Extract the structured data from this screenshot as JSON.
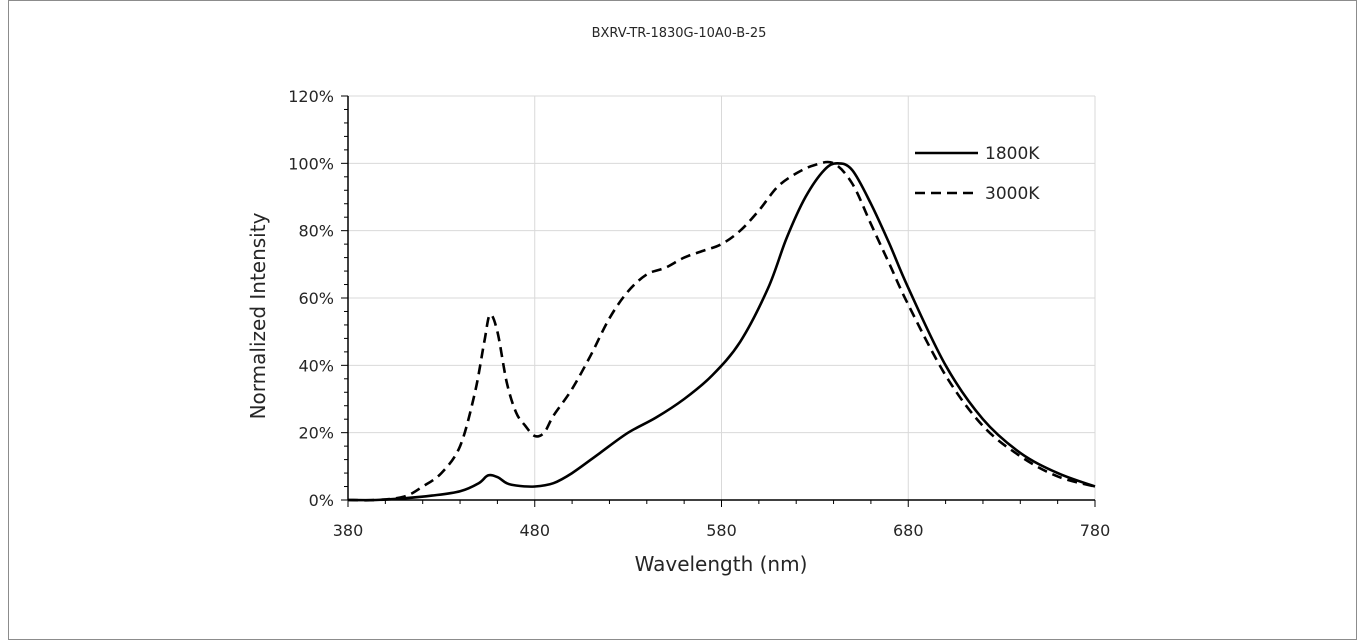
{
  "chart_data": {
    "type": "line",
    "title": "BXRV-TR-1830G-10A0-B-25",
    "xlabel": "Wavelength (nm)",
    "ylabel": "Normalized Intensity",
    "xlim": [
      380,
      780
    ],
    "ylim": [
      0,
      1.2
    ],
    "x_ticks": [
      380,
      480,
      580,
      680,
      780
    ],
    "y_ticks": [
      0,
      0.2,
      0.4,
      0.6,
      0.8,
      1.0,
      1.2
    ],
    "x_tick_labels": [
      "380",
      "480",
      "580",
      "680",
      "780"
    ],
    "y_tick_labels": [
      "0%",
      "20%",
      "40%",
      "60%",
      "80%",
      "100%",
      "120%"
    ],
    "grid": true,
    "legend_position": "top-right",
    "series": [
      {
        "name": "1800K",
        "style": "solid",
        "color": "#000000",
        "x": [
          380,
          395,
          410,
          425,
          440,
          450,
          455,
          460,
          465,
          470,
          480,
          490,
          500,
          515,
          530,
          545,
          560,
          575,
          590,
          605,
          615,
          625,
          635,
          642,
          650,
          660,
          670,
          680,
          700,
          720,
          740,
          760,
          780
        ],
        "y": [
          0.0,
          0.0,
          0.005,
          0.013,
          0.026,
          0.05,
          0.073,
          0.068,
          0.05,
          0.043,
          0.04,
          0.05,
          0.08,
          0.14,
          0.2,
          0.245,
          0.3,
          0.37,
          0.47,
          0.63,
          0.78,
          0.9,
          0.98,
          1.0,
          0.98,
          0.88,
          0.76,
          0.63,
          0.4,
          0.24,
          0.14,
          0.08,
          0.04
        ]
      },
      {
        "name": "3000K",
        "style": "dashed",
        "color": "#000000",
        "x": [
          380,
          395,
          410,
          420,
          430,
          440,
          448,
          453,
          456,
          460,
          465,
          470,
          475,
          480,
          485,
          490,
          500,
          510,
          520,
          530,
          540,
          550,
          560,
          570,
          580,
          590,
          600,
          610,
          620,
          630,
          640,
          650,
          660,
          670,
          680,
          700,
          720,
          740,
          760,
          780
        ],
        "y": [
          0.0,
          0.0,
          0.01,
          0.04,
          0.08,
          0.16,
          0.32,
          0.47,
          0.55,
          0.5,
          0.35,
          0.26,
          0.22,
          0.19,
          0.2,
          0.25,
          0.33,
          0.43,
          0.54,
          0.62,
          0.67,
          0.69,
          0.72,
          0.74,
          0.76,
          0.8,
          0.86,
          0.93,
          0.97,
          0.995,
          1.0,
          0.94,
          0.82,
          0.7,
          0.58,
          0.37,
          0.22,
          0.13,
          0.07,
          0.04
        ]
      }
    ]
  }
}
